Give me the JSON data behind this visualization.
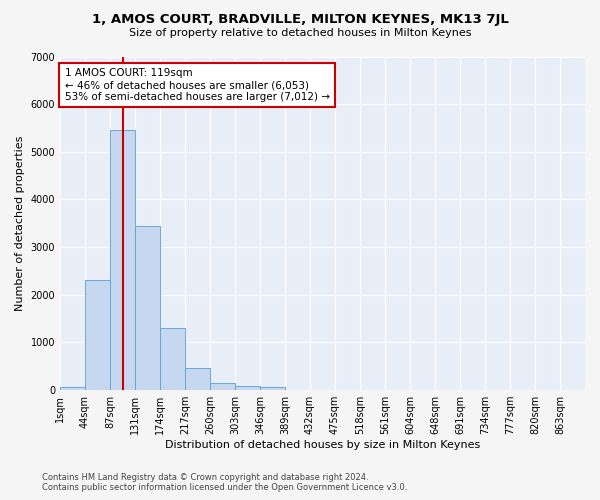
{
  "title": "1, AMOS COURT, BRADVILLE, MILTON KEYNES, MK13 7JL",
  "subtitle": "Size of property relative to detached houses in Milton Keynes",
  "xlabel": "Distribution of detached houses by size in Milton Keynes",
  "ylabel": "Number of detached properties",
  "bar_values": [
    75,
    2300,
    5450,
    3450,
    1310,
    470,
    155,
    85,
    55,
    0,
    0,
    0,
    0,
    0,
    0,
    0,
    0,
    0,
    0,
    0,
    0
  ],
  "bar_labels": [
    "1sqm",
    "44sqm",
    "87sqm",
    "131sqm",
    "174sqm",
    "217sqm",
    "260sqm",
    "303sqm",
    "346sqm",
    "389sqm",
    "432sqm",
    "475sqm",
    "518sqm",
    "561sqm",
    "604sqm",
    "648sqm",
    "691sqm",
    "734sqm",
    "777sqm",
    "820sqm",
    "863sqm"
  ],
  "bar_color": "#c5d8f0",
  "bar_edge_color": "#5a9fd4",
  "vline_x": 2.5,
  "vline_color": "#cc0000",
  "ylim": [
    0,
    7000
  ],
  "yticks": [
    0,
    1000,
    2000,
    3000,
    4000,
    5000,
    6000,
    7000
  ],
  "annotation_text": "1 AMOS COURT: 119sqm\n← 46% of detached houses are smaller (6,053)\n53% of semi-detached houses are larger (7,012) →",
  "annotation_box_color": "#ffffff",
  "annotation_box_edge": "#cc0000",
  "footer_text": "Contains HM Land Registry data © Crown copyright and database right 2024.\nContains public sector information licensed under the Open Government Licence v3.0.",
  "background_color": "#e8eef8",
  "grid_color": "#ffffff",
  "title_fontsize": 9.5,
  "subtitle_fontsize": 8,
  "axis_label_fontsize": 8,
  "tick_fontsize": 7,
  "annotation_fontsize": 7.5,
  "footer_fontsize": 6
}
